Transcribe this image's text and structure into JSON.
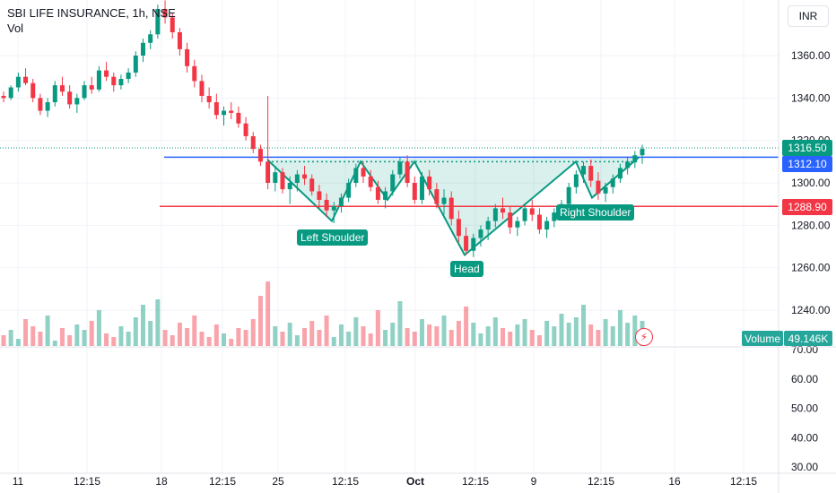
{
  "legend": {
    "title": "SBI LIFE INSURANCE, 1h, NSE",
    "vol_label": "Vol"
  },
  "currency": "INR",
  "price_tags": {
    "last_price": "1316.50",
    "blue_level": "1312.10",
    "red_level": "1288.90",
    "last_price_color": "#089981",
    "blue_color": "#2962ff",
    "red_color": "#f23645"
  },
  "volume_tag": {
    "label": "Volume",
    "value": "49.146K"
  },
  "annotations": {
    "left_shoulder": "Left Shoulder",
    "head": "Head",
    "right_shoulder": "Right Shoulder"
  },
  "chart_data": {
    "type": "candlestick",
    "price_axis": {
      "ticks": [
        "1360.00",
        "1340.00",
        "1320.00",
        "1300.00",
        "1280.00",
        "1260.00",
        "1240.00"
      ],
      "ylim": [
        1230,
        1384
      ]
    },
    "volume_axis": {
      "ticks": [
        "70.00",
        "60.00",
        "50.00",
        "40.00",
        "30.00"
      ],
      "ylim": [
        28,
        72
      ]
    },
    "x_axis_ticks": [
      "11",
      "12:15",
      "18",
      "12:15",
      "25",
      "12:15",
      "Oct",
      "12:15",
      "9",
      "12:15",
      "16",
      "12:15"
    ],
    "levels": {
      "neckline": 1312.1,
      "support": 1288.9
    },
    "pattern": "inverse head and shoulders",
    "pattern_points": [
      {
        "label": "start",
        "date": "25 Sep",
        "y": 1311
      },
      {
        "label": "Left Shoulder",
        "date": "27 Sep",
        "y": 1282
      },
      {
        "label": "shoulder-top",
        "date": "29 Sep",
        "y": 1310
      },
      {
        "label": "left-neck",
        "date": "30 Sep",
        "y": 1292
      },
      {
        "label": "neck-top",
        "date": "1 Oct",
        "y": 1310
      },
      {
        "label": "Head",
        "date": "4 Oct",
        "y": 1266
      },
      {
        "label": "right-neck",
        "date": "10 Oct",
        "y": 1310
      },
      {
        "label": "Right Shoulder",
        "date": "11 Oct",
        "y": 1293
      },
      {
        "label": "end",
        "date": "13 Oct",
        "y": 1312
      }
    ],
    "candles": [
      [
        1341,
        1343,
        1338,
        1340
      ],
      [
        1340,
        1346,
        1339,
        1345
      ],
      [
        1345,
        1352,
        1343,
        1350
      ],
      [
        1350,
        1354,
        1346,
        1347
      ],
      [
        1347,
        1349,
        1338,
        1340
      ],
      [
        1340,
        1342,
        1332,
        1334
      ],
      [
        1334,
        1340,
        1331,
        1338
      ],
      [
        1338,
        1348,
        1336,
        1346
      ],
      [
        1346,
        1350,
        1341,
        1343
      ],
      [
        1343,
        1346,
        1335,
        1337
      ],
      [
        1337,
        1342,
        1333,
        1340
      ],
      [
        1340,
        1348,
        1339,
        1346
      ],
      [
        1346,
        1350,
        1342,
        1344
      ],
      [
        1344,
        1355,
        1343,
        1353
      ],
      [
        1353,
        1357,
        1348,
        1350
      ],
      [
        1350,
        1352,
        1343,
        1346
      ],
      [
        1346,
        1351,
        1344,
        1349
      ],
      [
        1349,
        1354,
        1347,
        1352
      ],
      [
        1352,
        1362,
        1350,
        1360
      ],
      [
        1360,
        1368,
        1357,
        1366
      ],
      [
        1366,
        1372,
        1363,
        1370
      ],
      [
        1370,
        1384,
        1368,
        1382
      ],
      [
        1382,
        1386,
        1375,
        1378
      ],
      [
        1378,
        1380,
        1368,
        1371
      ],
      [
        1371,
        1373,
        1360,
        1363
      ],
      [
        1363,
        1366,
        1352,
        1355
      ],
      [
        1355,
        1358,
        1345,
        1348
      ],
      [
        1348,
        1351,
        1338,
        1341
      ],
      [
        1341,
        1345,
        1335,
        1338
      ],
      [
        1338,
        1342,
        1330,
        1332
      ],
      [
        1332,
        1336,
        1327,
        1334
      ],
      [
        1334,
        1338,
        1330,
        1333
      ],
      [
        1333,
        1336,
        1326,
        1328
      ],
      [
        1328,
        1331,
        1320,
        1322
      ],
      [
        1322,
        1324,
        1314,
        1316
      ],
      [
        1316,
        1318,
        1308,
        1310
      ],
      [
        1310,
        1341,
        1297,
        1300
      ],
      [
        1300,
        1308,
        1296,
        1305
      ],
      [
        1305,
        1307,
        1295,
        1297
      ],
      [
        1297,
        1303,
        1290,
        1300
      ],
      [
        1300,
        1306,
        1296,
        1304
      ],
      [
        1304,
        1308,
        1299,
        1302
      ],
      [
        1302,
        1304,
        1294,
        1296
      ],
      [
        1296,
        1299,
        1288,
        1292
      ],
      [
        1292,
        1295,
        1284,
        1287
      ],
      [
        1287,
        1291,
        1281,
        1289
      ],
      [
        1289,
        1295,
        1286,
        1293
      ],
      [
        1293,
        1302,
        1291,
        1300
      ],
      [
        1300,
        1309,
        1298,
        1307
      ],
      [
        1307,
        1310,
        1300,
        1303
      ],
      [
        1303,
        1306,
        1296,
        1298
      ],
      [
        1298,
        1301,
        1290,
        1292
      ],
      [
        1292,
        1298,
        1288,
        1296
      ],
      [
        1296,
        1306,
        1294,
        1304
      ],
      [
        1304,
        1312,
        1302,
        1310
      ],
      [
        1310,
        1313,
        1298,
        1300
      ],
      [
        1300,
        1303,
        1290,
        1292
      ],
      [
        1292,
        1305,
        1290,
        1303
      ],
      [
        1303,
        1306,
        1294,
        1297
      ],
      [
        1297,
        1300,
        1288,
        1290
      ],
      [
        1290,
        1297,
        1285,
        1293
      ],
      [
        1293,
        1296,
        1280,
        1283
      ],
      [
        1283,
        1287,
        1272,
        1275
      ],
      [
        1275,
        1279,
        1266,
        1268
      ],
      [
        1268,
        1276,
        1265,
        1274
      ],
      [
        1274,
        1280,
        1270,
        1278
      ],
      [
        1278,
        1284,
        1273,
        1282
      ],
      [
        1282,
        1290,
        1279,
        1288
      ],
      [
        1288,
        1293,
        1283,
        1286
      ],
      [
        1286,
        1289,
        1276,
        1279
      ],
      [
        1279,
        1284,
        1275,
        1282
      ],
      [
        1282,
        1290,
        1280,
        1288
      ],
      [
        1288,
        1292,
        1282,
        1285
      ],
      [
        1285,
        1288,
        1276,
        1278
      ],
      [
        1278,
        1284,
        1274,
        1282
      ],
      [
        1282,
        1288,
        1279,
        1286
      ],
      [
        1286,
        1292,
        1283,
        1290
      ],
      [
        1290,
        1300,
        1288,
        1298
      ],
      [
        1298,
        1306,
        1295,
        1304
      ],
      [
        1304,
        1310,
        1300,
        1308
      ],
      [
        1308,
        1311,
        1298,
        1301
      ],
      [
        1301,
        1305,
        1292,
        1295
      ],
      [
        1295,
        1300,
        1291,
        1298
      ],
      [
        1298,
        1304,
        1295,
        1302
      ],
      [
        1302,
        1309,
        1300,
        1307
      ],
      [
        1307,
        1312,
        1304,
        1310
      ],
      [
        1310,
        1315,
        1307,
        1313
      ],
      [
        1313,
        1318,
        1309,
        1316
      ]
    ],
    "volumes": [
      41,
      44,
      39,
      50,
      46,
      43,
      52,
      38,
      45,
      41,
      47,
      44,
      49,
      55,
      42,
      40,
      46,
      43,
      51,
      58,
      49,
      61,
      44,
      41,
      48,
      45,
      52,
      43,
      40,
      47,
      42,
      39,
      45,
      44,
      50,
      63,
      71,
      46,
      43,
      48,
      41,
      45,
      49,
      44,
      52,
      40,
      47,
      43,
      51,
      46,
      42,
      55,
      44,
      48,
      60,
      45,
      43,
      50,
      47,
      46,
      52,
      44,
      49,
      57,
      48,
      42,
      46,
      51,
      45,
      43,
      47,
      50,
      44,
      41,
      49,
      46,
      53,
      48,
      51,
      58,
      47,
      44,
      50,
      46,
      55,
      48,
      52,
      49
    ]
  }
}
